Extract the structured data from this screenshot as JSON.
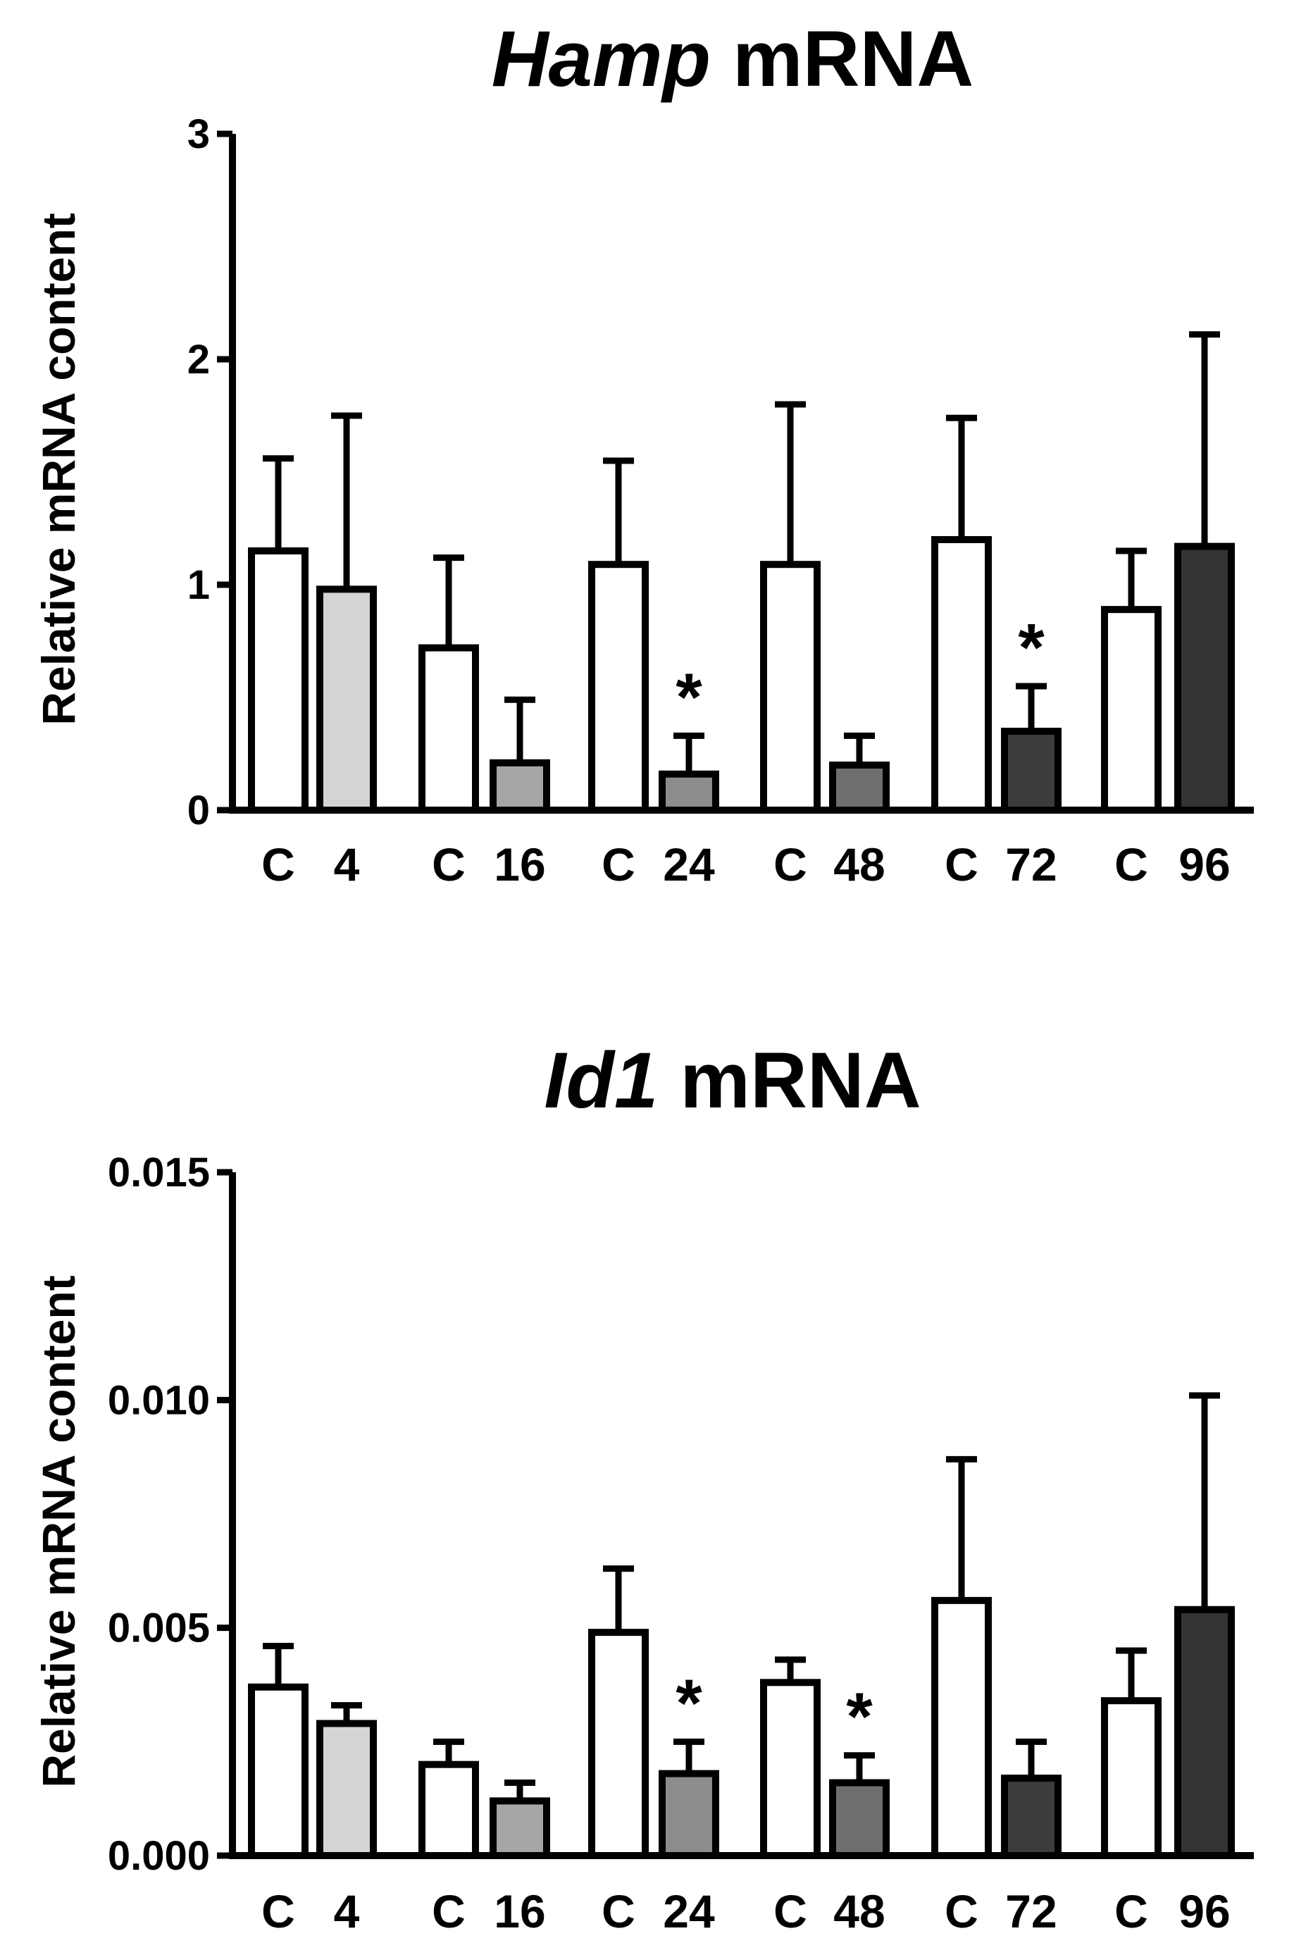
{
  "chart_data": [
    {
      "type": "bar",
      "title": "Hamp mRNA",
      "title_gene": "Hamp",
      "title_suffix": " mRNA",
      "xlabel": "",
      "ylabel": "Relative mRNA content",
      "ylim": [
        0,
        3
      ],
      "yticks": [
        0,
        1,
        2,
        3
      ],
      "ytick_labels": [
        "0",
        "1",
        "2",
        "3"
      ],
      "grid": false,
      "categories": [
        "C",
        "4",
        "C",
        "16",
        "C",
        "24",
        "C",
        "48",
        "C",
        "72",
        "C",
        "96"
      ],
      "values": [
        1.15,
        0.98,
        0.72,
        0.21,
        1.09,
        0.16,
        1.09,
        0.2,
        1.2,
        0.35,
        0.89,
        1.17
      ],
      "errors": [
        0.41,
        0.77,
        0.4,
        0.28,
        0.46,
        0.17,
        0.71,
        0.13,
        0.54,
        0.2,
        0.26,
        0.94
      ],
      "fills": [
        "#ffffff",
        "#d4d4d4",
        "#ffffff",
        "#a6a6a6",
        "#ffffff",
        "#8c8c8c",
        "#ffffff",
        "#6e6e6e",
        "#ffffff",
        "#3c3c3c",
        "#ffffff",
        "#333333"
      ],
      "significant": [
        false,
        false,
        false,
        false,
        false,
        true,
        false,
        false,
        false,
        true,
        false,
        false
      ],
      "annotation": "*"
    },
    {
      "type": "bar",
      "title": "Id1 mRNA",
      "title_gene": "Id1",
      "title_suffix": " mRNA",
      "xlabel": "",
      "ylabel": "Relative mRNA content",
      "ylim": [
        0,
        0.015
      ],
      "yticks": [
        0,
        0.005,
        0.01,
        0.015
      ],
      "ytick_labels": [
        "0.000",
        "0.005",
        "0.010",
        "0.015"
      ],
      "grid": false,
      "categories": [
        "C",
        "4",
        "C",
        "16",
        "C",
        "24",
        "C",
        "48",
        "C",
        "72",
        "C",
        "96"
      ],
      "values": [
        0.0037,
        0.0029,
        0.002,
        0.0012,
        0.0049,
        0.0018,
        0.0038,
        0.0016,
        0.0056,
        0.0017,
        0.0034,
        0.0054
      ],
      "errors": [
        0.0009,
        0.0004,
        0.0005,
        0.0004,
        0.0014,
        0.0007,
        0.0005,
        0.0006,
        0.0031,
        0.0008,
        0.0011,
        0.0047
      ],
      "fills": [
        "#ffffff",
        "#d4d4d4",
        "#ffffff",
        "#a6a6a6",
        "#ffffff",
        "#8c8c8c",
        "#ffffff",
        "#6e6e6e",
        "#ffffff",
        "#3c3c3c",
        "#ffffff",
        "#333333"
      ],
      "significant": [
        false,
        false,
        false,
        false,
        false,
        true,
        false,
        true,
        false,
        false,
        false,
        false
      ],
      "annotation": "*"
    }
  ]
}
